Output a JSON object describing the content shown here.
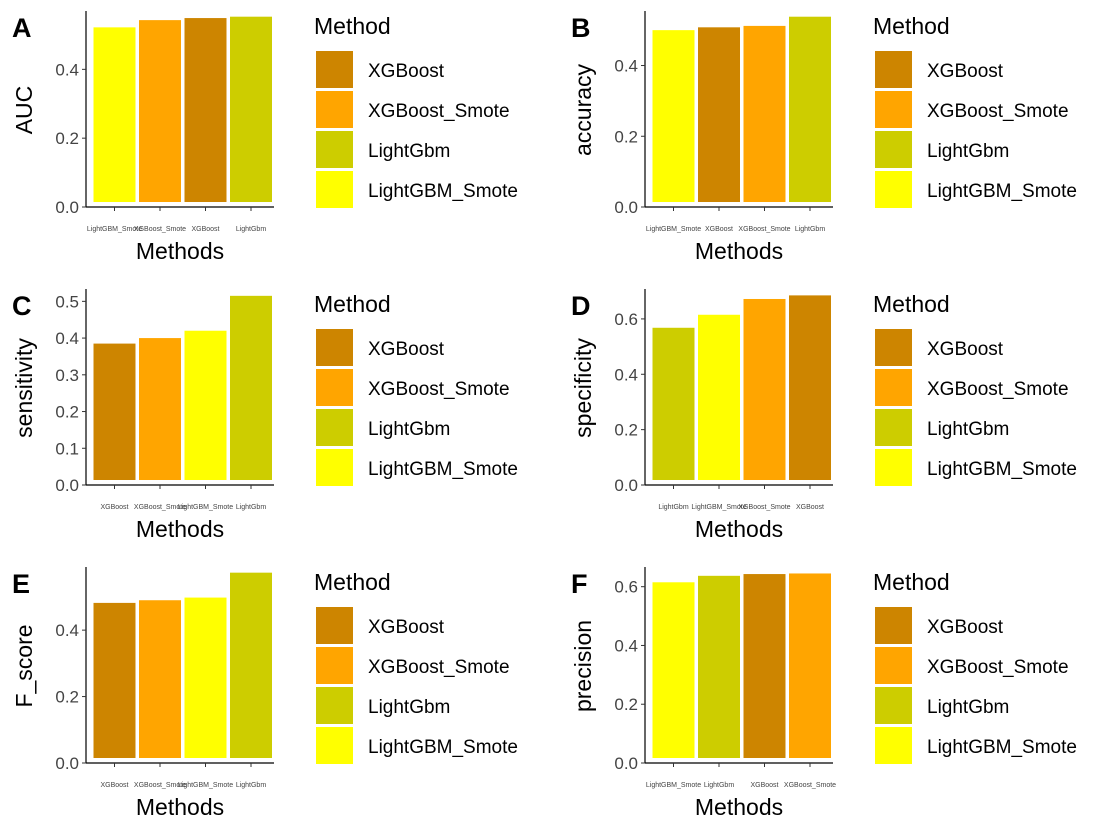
{
  "legend": {
    "title": "Method",
    "entries": [
      {
        "name": "XGBoost",
        "color": "#CD8500"
      },
      {
        "name": "XGBoost_Smote",
        "color": "#FFA500"
      },
      {
        "name": "LightGbm",
        "color": "#CDCD00"
      },
      {
        "name": "LightGBM_Smote",
        "color": "#FFFF00"
      }
    ]
  },
  "chart_data": [
    {
      "panel": "A",
      "type": "bar",
      "xlabel": "Methods",
      "ylabel": "AUC",
      "ylim": [
        0,
        0.555
      ],
      "yticks": [
        0.0,
        0.2,
        0.4
      ],
      "yticklabels": [
        "0.0",
        "0.2",
        "0.4"
      ],
      "categories": [
        "LightGBM_Smote",
        "XGBoost_Smote",
        "XGBoost",
        "LightGbm"
      ],
      "values": [
        0.522,
        0.543,
        0.549,
        0.553
      ],
      "colors": [
        "#FFFF00",
        "#FFA500",
        "#CD8500",
        "#CDCD00"
      ]
    },
    {
      "panel": "B",
      "type": "bar",
      "xlabel": "Methods",
      "ylabel": "accuracy",
      "ylim": [
        0,
        0.54
      ],
      "yticks": [
        0.0,
        0.2,
        0.4
      ],
      "yticklabels": [
        "0.0",
        "0.2",
        "0.4"
      ],
      "categories": [
        "LightGBM_Smote",
        "XGBoost",
        "XGBoost_Smote",
        "LightGbm"
      ],
      "values": [
        0.5,
        0.508,
        0.512,
        0.538
      ],
      "colors": [
        "#FFFF00",
        "#CD8500",
        "#FFA500",
        "#CDCD00"
      ]
    },
    {
      "panel": "C",
      "type": "bar",
      "xlabel": "Methods",
      "ylabel": "sensitivity",
      "ylim": [
        0,
        0.52
      ],
      "yticks": [
        0.0,
        0.1,
        0.2,
        0.3,
        0.4,
        0.5
      ],
      "yticklabels": [
        "0.0",
        "0.1",
        "0.2",
        "0.3",
        "0.4",
        "0.5"
      ],
      "categories": [
        "XGBoost",
        "XGBoost_Smote",
        "LightGBM_Smote",
        "LightGbm"
      ],
      "values": [
        0.385,
        0.4,
        0.42,
        0.515
      ],
      "colors": [
        "#CD8500",
        "#FFA500",
        "#FFFF00",
        "#CDCD00"
      ]
    },
    {
      "panel": "D",
      "type": "bar",
      "xlabel": "Methods",
      "ylabel": "specificity",
      "ylim": [
        0,
        0.69
      ],
      "yticks": [
        0.0,
        0.2,
        0.4,
        0.6
      ],
      "yticklabels": [
        "0.0",
        "0.2",
        "0.4",
        "0.6"
      ],
      "categories": [
        "LightGbm",
        "LightGBM_Smote",
        "XGBoost_Smote",
        "XGBoost"
      ],
      "values": [
        0.568,
        0.615,
        0.672,
        0.685
      ],
      "colors": [
        "#CDCD00",
        "#FFFF00",
        "#FFA500",
        "#CD8500"
      ]
    },
    {
      "panel": "E",
      "type": "bar",
      "xlabel": "Methods",
      "ylabel": "F_score",
      "ylim": [
        0,
        0.575
      ],
      "yticks": [
        0.0,
        0.2,
        0.4
      ],
      "yticklabels": [
        "0.0",
        "0.2",
        "0.4"
      ],
      "categories": [
        "XGBoost",
        "XGBoost_Smote",
        "LightGBM_Smote",
        "LightGbm"
      ],
      "values": [
        0.482,
        0.49,
        0.498,
        0.573
      ],
      "colors": [
        "#CD8500",
        "#FFA500",
        "#FFFF00",
        "#CDCD00"
      ]
    },
    {
      "panel": "F",
      "type": "bar",
      "xlabel": "Methods",
      "ylabel": "precision",
      "ylim": [
        0,
        0.65
      ],
      "yticks": [
        0.0,
        0.2,
        0.4,
        0.6
      ],
      "yticklabels": [
        "0.0",
        "0.2",
        "0.4",
        "0.6"
      ],
      "categories": [
        "LightGBM_Smote",
        "LightGbm",
        "XGBoost",
        "XGBoost_Smote"
      ],
      "values": [
        0.615,
        0.637,
        0.643,
        0.645
      ],
      "colors": [
        "#FFFF00",
        "#CDCD00",
        "#CD8500",
        "#FFA500"
      ]
    }
  ]
}
